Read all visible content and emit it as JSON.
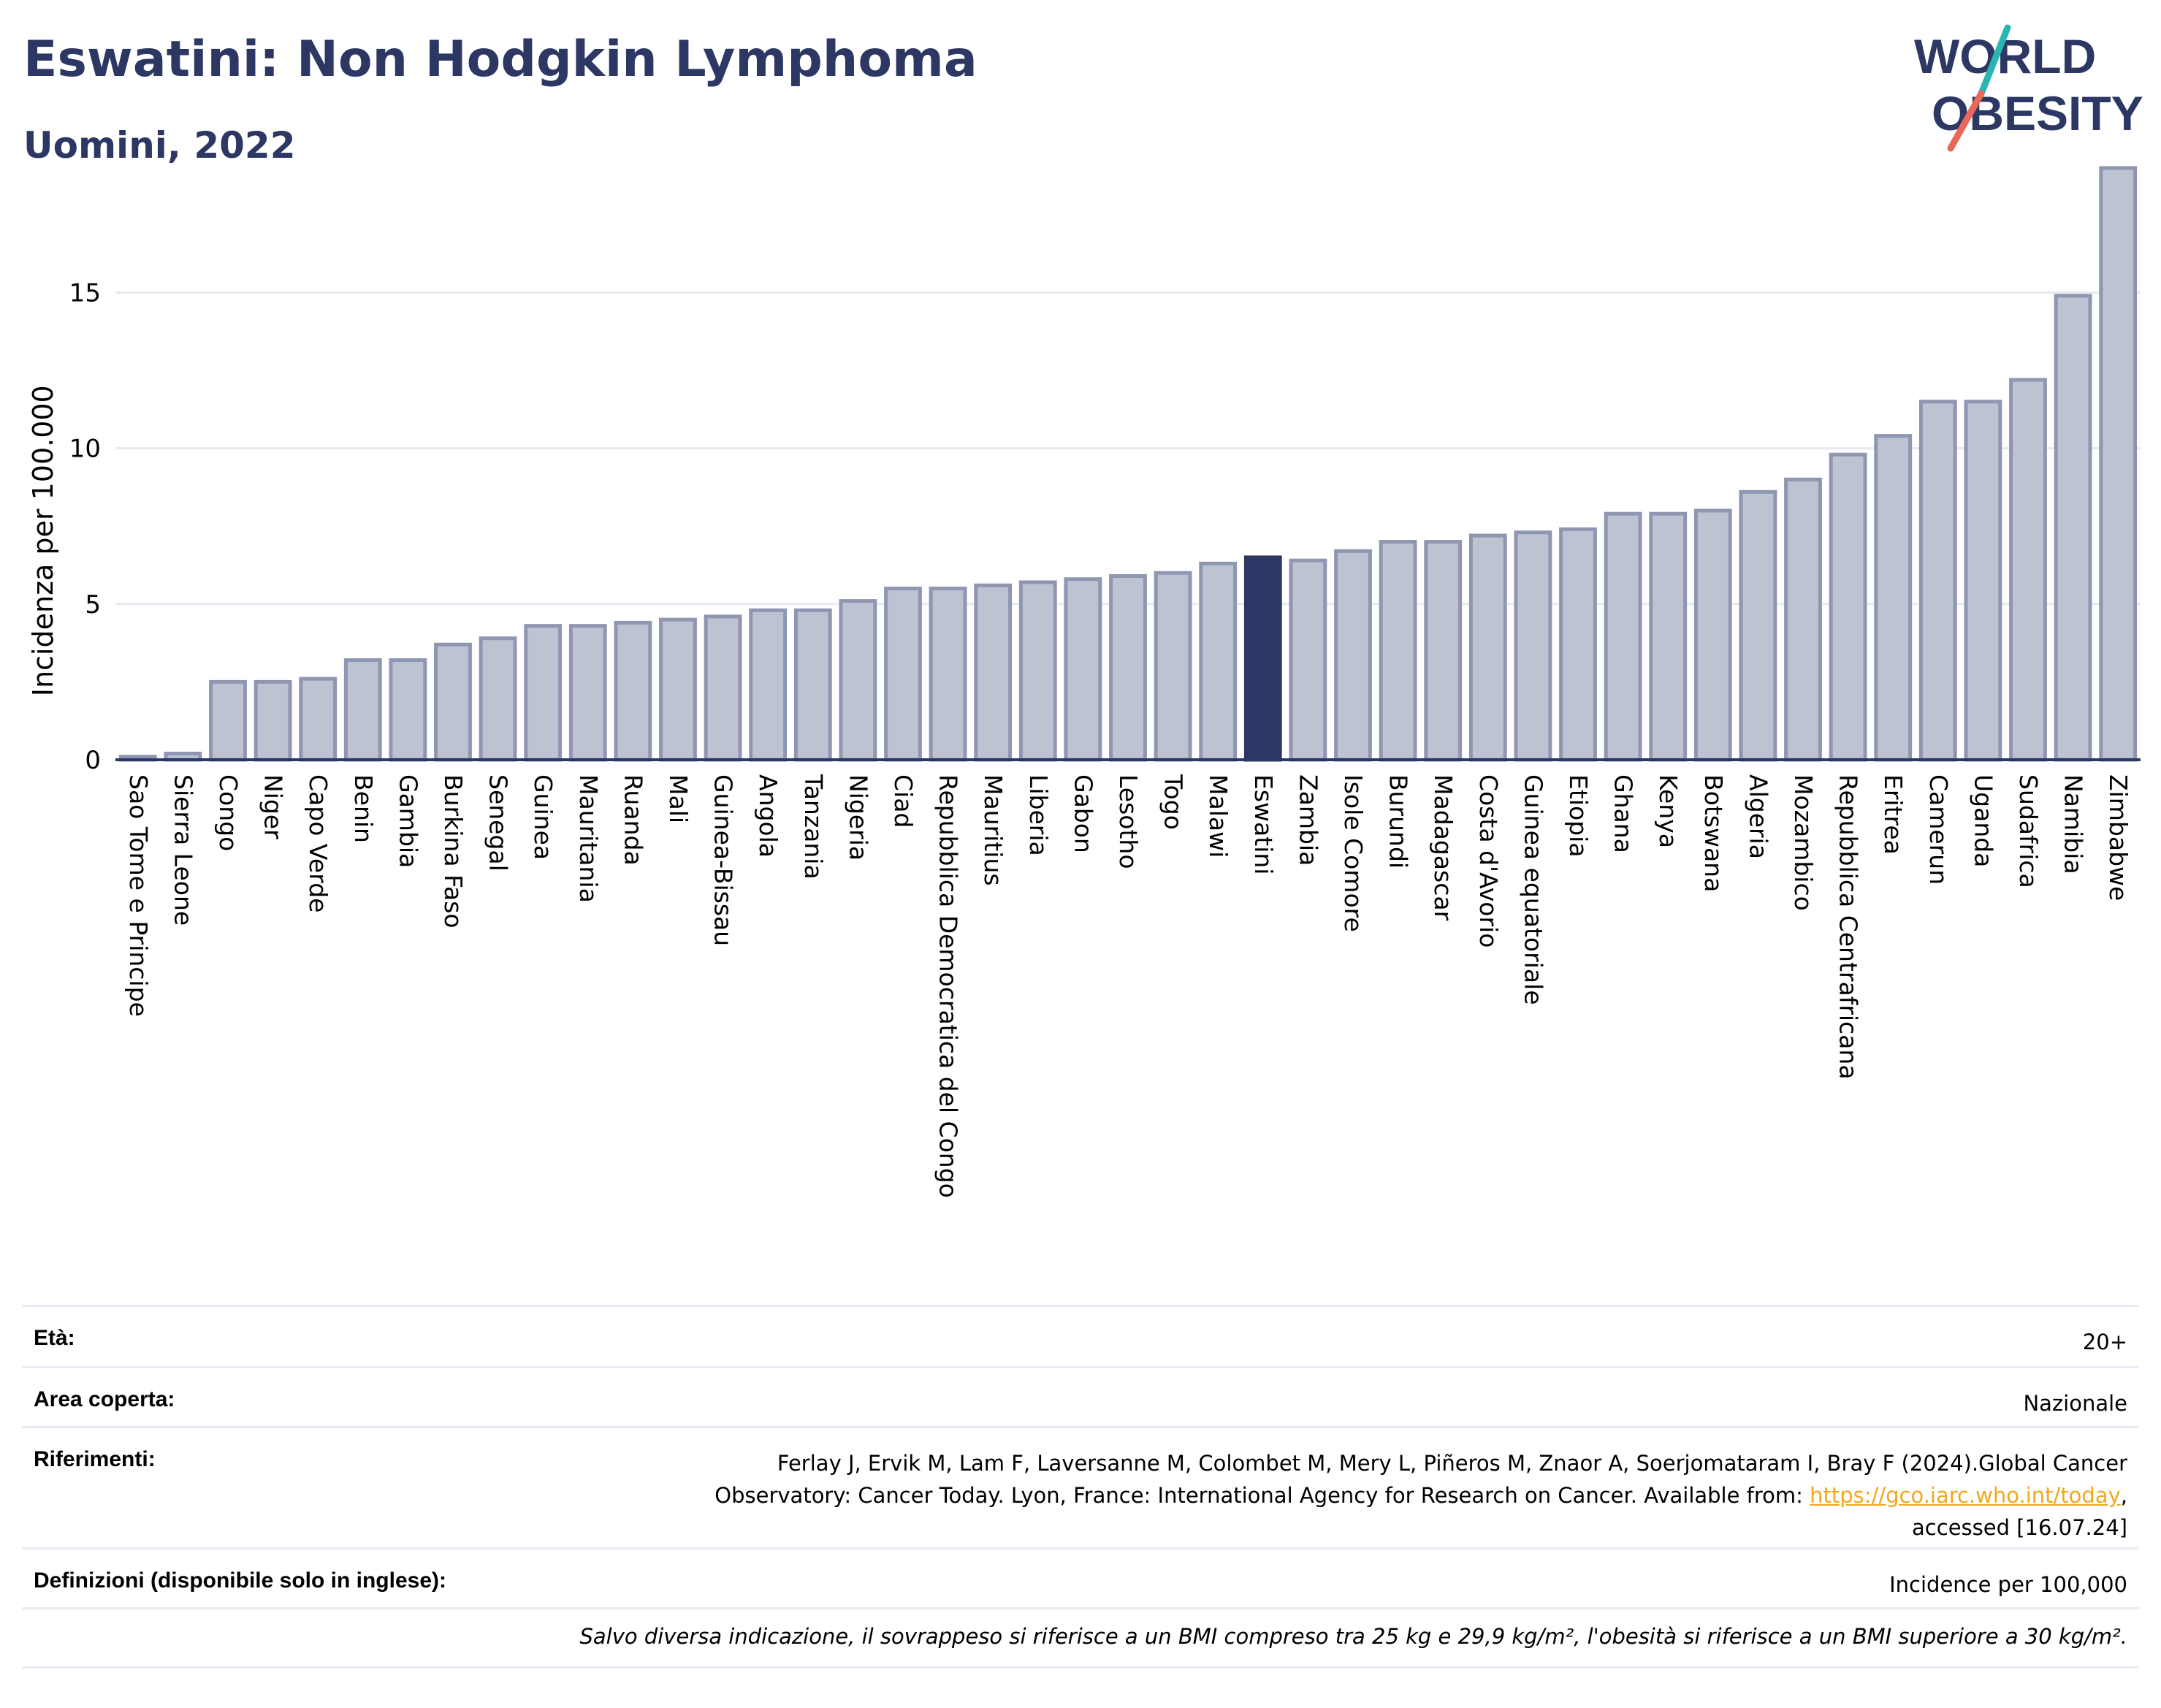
{
  "header": {
    "title": "Eswatini: Non Hodgkin Lymphoma",
    "subtitle": "Uomini, 2022"
  },
  "logo": {
    "line1": "WORLD",
    "line2": "OBESITY",
    "colors": {
      "text": "#2c3763",
      "slash_teal": "#2ab5b2",
      "slash_red": "#e8685a"
    }
  },
  "chart_data": {
    "type": "bar",
    "ylabel": "Incidenza per 100.000",
    "xlabel": "",
    "ylim": [
      0,
      19
    ],
    "yticks": [
      0,
      5,
      10,
      15
    ],
    "grid": true,
    "highlight": "Eswatini",
    "colors": {
      "bar": "#bec3d1",
      "bar_edge": "#8e96b2",
      "highlight": "#2c3763",
      "grid": "#e6e9f0",
      "axis": "#2c3763"
    },
    "categories": [
      "Sao Tome e Principe",
      "Sierra Leone",
      "Congo",
      "Niger",
      "Capo Verde",
      "Benin",
      "Gambia",
      "Burkina Faso",
      "Senegal",
      "Guinea",
      "Mauritania",
      "Ruanda",
      "Mali",
      "Guinea-Bissau",
      "Angola",
      "Tanzania",
      "Nigeria",
      "Ciad",
      "Repubblica Democratica del Congo",
      "Mauritius",
      "Liberia",
      "Gabon",
      "Lesotho",
      "Togo",
      "Malawi",
      "Eswatini",
      "Zambia",
      "Isole Comore",
      "Burundi",
      "Madagascar",
      "Costa d'Avorio",
      "Guinea equatoriale",
      "Etiopia",
      "Ghana",
      "Kenya",
      "Botswana",
      "Algeria",
      "Mozambico",
      "Repubblica Centrafricana",
      "Eritrea",
      "Camerun",
      "Uganda",
      "Sudafrica",
      "Namibia",
      "Zimbabwe"
    ],
    "values": [
      0.1,
      0.2,
      2.5,
      2.5,
      2.6,
      3.2,
      3.2,
      3.7,
      3.9,
      4.3,
      4.3,
      4.4,
      4.5,
      4.6,
      4.8,
      4.8,
      5.1,
      5.5,
      5.5,
      5.6,
      5.7,
      5.8,
      5.9,
      6.0,
      6.3,
      6.5,
      6.4,
      6.7,
      7.0,
      7.0,
      7.2,
      7.3,
      7.4,
      7.9,
      7.9,
      8.0,
      8.6,
      9.0,
      9.8,
      10.4,
      11.5,
      11.5,
      12.2,
      14.9,
      19.0
    ]
  },
  "info": {
    "age_label": "Età:",
    "age_value": "20+",
    "area_label": "Area coperta:",
    "area_value": "Nazionale",
    "ref_label": "Riferimenti:",
    "ref_line1": "Ferlay J, Ervik M, Lam F, Laversanne M, Colombet M, Mery L, Piñeros M, Znaor A, Soerjomataram I, Bray F (2024).Global Cancer",
    "ref_line2_pre": "Observatory: Cancer Today. Lyon, France: International Agency for Research on Cancer. Available from: ",
    "ref_link": "https://gco.iarc.who.int/today",
    "ref_line2_post": ",",
    "ref_line3": "accessed [16.07.24]",
    "def_label": "Definizioni (disponibile solo in inglese):",
    "def_value": "Incidence per 100,000",
    "note": "Salvo diversa indicazione, il sovrappeso si riferisce a un BMI compreso tra 25 kg e 29,9 kg/m², l'obesità si riferisce a un BMI superiore a 30 kg/m²."
  }
}
